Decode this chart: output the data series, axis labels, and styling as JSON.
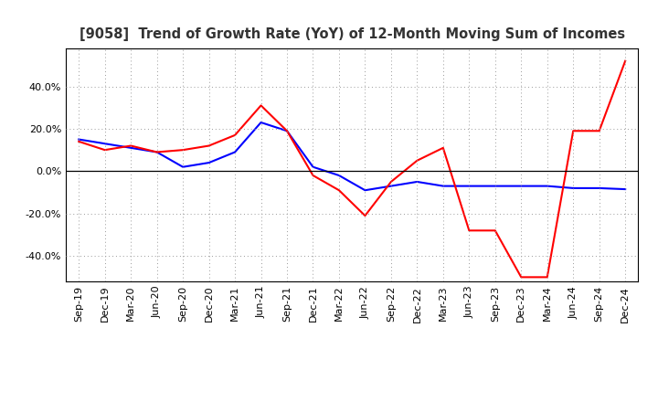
{
  "title": "[9058]  Trend of Growth Rate (YoY) of 12-Month Moving Sum of Incomes",
  "x_labels": [
    "Sep-19",
    "Dec-19",
    "Mar-20",
    "Jun-20",
    "Sep-20",
    "Dec-20",
    "Mar-21",
    "Jun-21",
    "Sep-21",
    "Dec-21",
    "Mar-22",
    "Jun-22",
    "Sep-22",
    "Dec-22",
    "Mar-23",
    "Jun-23",
    "Sep-23",
    "Dec-23",
    "Mar-24",
    "Jun-24",
    "Sep-24",
    "Dec-24"
  ],
  "ordinary_income": [
    0.15,
    0.13,
    0.11,
    0.09,
    0.02,
    0.04,
    0.09,
    0.23,
    0.19,
    0.02,
    -0.02,
    -0.09,
    -0.07,
    -0.05,
    -0.07,
    -0.07,
    -0.07,
    -0.07,
    -0.07,
    -0.08,
    -0.08,
    -0.085
  ],
  "net_income": [
    0.14,
    0.1,
    0.12,
    0.09,
    0.1,
    0.12,
    0.17,
    0.31,
    0.19,
    -0.02,
    -0.09,
    -0.21,
    -0.05,
    0.05,
    0.11,
    -0.28,
    -0.28,
    -0.5,
    -0.5,
    0.19,
    0.19,
    0.52
  ],
  "ylim": [
    -0.52,
    0.58
  ],
  "yticks": [
    -0.4,
    -0.2,
    0.0,
    0.2,
    0.4
  ],
  "ordinary_color": "#0000FF",
  "net_color": "#FF0000",
  "background_color": "#FFFFFF",
  "grid_color": "#999999",
  "title_fontsize": 10.5,
  "tick_fontsize": 8,
  "legend_fontsize": 9
}
